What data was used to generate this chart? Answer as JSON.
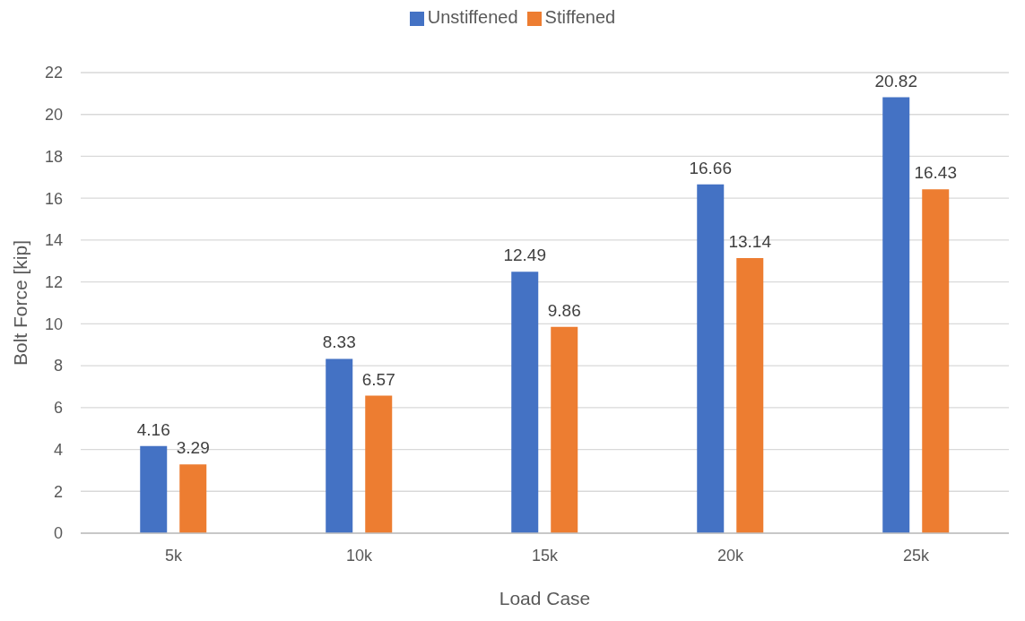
{
  "chart_data": {
    "type": "bar",
    "xlabel": "Load Case",
    "ylabel": "Bolt Force [kip]",
    "categories": [
      "5k",
      "10k",
      "15k",
      "20k",
      "25k"
    ],
    "series": [
      {
        "name": "Unstiffened",
        "color": "#4472c4",
        "values": [
          4.16,
          8.33,
          12.49,
          16.66,
          20.82
        ]
      },
      {
        "name": "Stiffened",
        "color": "#ed7d31",
        "values": [
          3.29,
          6.57,
          9.86,
          13.14,
          16.43
        ]
      }
    ],
    "ylim": [
      0,
      22
    ],
    "yticks": [
      0,
      2,
      4,
      6,
      8,
      10,
      12,
      14,
      16,
      18,
      20,
      22
    ],
    "grid": "y",
    "legend": "top",
    "data_labels": true
  }
}
